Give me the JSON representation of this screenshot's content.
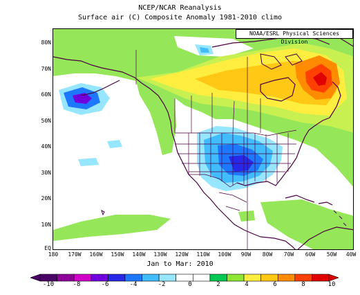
{
  "title_line1": "NCEP/NCAR Reanalysis",
  "title_line2": "Surface air (C) Composite Anomaly 1981-2010 climo",
  "credit": "NOAA/ESRL Physical Sciences Division",
  "period": "Jan to Mar: 2010",
  "lat_labels": [
    "80N",
    "70N",
    "60N",
    "50N",
    "40N",
    "30N",
    "20N",
    "10N",
    "EQ"
  ],
  "lon_labels": [
    "180",
    "170W",
    "160W",
    "150W",
    "140W",
    "130W",
    "120W",
    "110W",
    "100W",
    "90W",
    "80W",
    "70W",
    "60W",
    "50W",
    "40W"
  ],
  "colorbar": {
    "ticks": [
      "-10",
      "-8",
      "-6",
      "-4",
      "-2",
      "0",
      "2",
      "4",
      "6",
      "8",
      "10"
    ],
    "colors": [
      "#4b0068",
      "#8e0098",
      "#d000c8",
      "#7000dc",
      "#2828e8",
      "#1e78ff",
      "#40bcff",
      "#96e6ff",
      "#ffffff",
      "#ffffff",
      "#00c850",
      "#8ce632",
      "#ffee40",
      "#ffc814",
      "#ff8c00",
      "#ff4000",
      "#e00000"
    ]
  },
  "anomaly_colors": {
    "lt_-6": "#7000dc",
    "-6_-4": "#2828e8",
    "-4_-3": "#1e78ff",
    "-3_-2": "#40bcff",
    "-2_-1": "#96e6ff",
    "-1_1": "#ffffff",
    "1_2": "#96e65a",
    "2_3": "#c8f050",
    "3_4": "#ffee40",
    "4_5": "#ffc814",
    "5_6": "#ff8c00",
    "6_8": "#ff4000",
    "gt_8": "#e00000"
  }
}
